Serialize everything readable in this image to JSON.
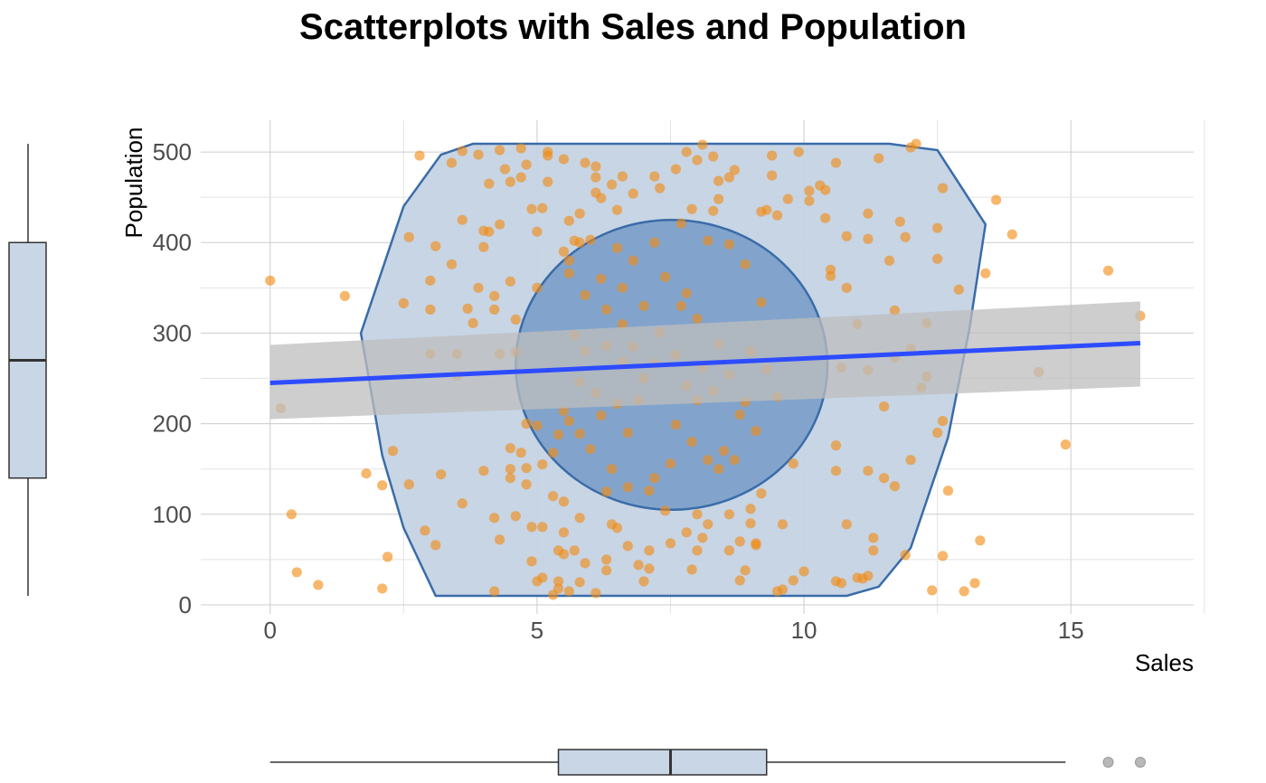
{
  "chart_data": {
    "type": "scatter",
    "title": "Scatterplots with Sales and Population",
    "xlabel": "Sales",
    "ylabel": "Population",
    "xlim": [
      -1.3,
      17.3
    ],
    "ylim": [
      -10,
      535
    ],
    "x_ticks": [
      0,
      5,
      10,
      15
    ],
    "y_ticks": [
      0,
      100,
      200,
      300,
      400,
      500
    ],
    "grid": true,
    "colors": {
      "points": "#f28a12",
      "regression_line": "#2d4cff",
      "confidence_band": "#bdbdbd",
      "hull_outer_fill": "#c4d3e4",
      "hull_inner_fill": "#7a9fc9",
      "hull_stroke": "#3a6ca8",
      "boxplot_fill": "#c8d6e6",
      "grid": "#cccccc",
      "outlier": "#b0b0b0"
    },
    "regression": {
      "x": [
        0,
        16.3
      ],
      "y": [
        245,
        289
      ],
      "ci_lower": [
        205,
        241
      ],
      "ci_upper": [
        287,
        335
      ]
    },
    "hull_outer": [
      [
        3.1,
        10
      ],
      [
        10.8,
        10
      ],
      [
        11.4,
        20
      ],
      [
        12.0,
        63
      ],
      [
        12.7,
        185
      ],
      [
        13.1,
        305
      ],
      [
        13.4,
        420
      ],
      [
        12.5,
        502
      ],
      [
        11.6,
        509
      ],
      [
        3.8,
        509
      ],
      [
        3.2,
        497
      ],
      [
        2.5,
        440
      ],
      [
        1.7,
        300
      ],
      [
        2.1,
        165
      ],
      [
        2.5,
        85
      ]
    ],
    "ellipse_inner": {
      "cx": 7.52,
      "cy": 265,
      "rx": 2.92,
      "ry": 160
    },
    "x_boxplot": {
      "min": 0,
      "q1": 5.4,
      "median": 7.5,
      "q3": 9.3,
      "max": 14.9,
      "outliers": [
        15.7,
        16.3
      ]
    },
    "y_boxplot": {
      "min": 10,
      "q1": 140,
      "median": 270,
      "q3": 400,
      "max": 509
    },
    "series": [
      {
        "points": [
          [
            0.0,
            358
          ],
          [
            0.2,
            217
          ],
          [
            0.4,
            100
          ],
          [
            0.5,
            36
          ],
          [
            0.9,
            22
          ],
          [
            1.4,
            341
          ],
          [
            1.8,
            145
          ],
          [
            2.1,
            18
          ],
          [
            2.1,
            132
          ],
          [
            2.2,
            53
          ],
          [
            2.3,
            170
          ],
          [
            2.6,
            406
          ],
          [
            2.6,
            133
          ],
          [
            2.5,
            333
          ],
          [
            2.8,
            496
          ],
          [
            2.9,
            82
          ],
          [
            3.0,
            358
          ],
          [
            3.0,
            326
          ],
          [
            3.0,
            277
          ],
          [
            3.1,
            66
          ],
          [
            3.1,
            396
          ],
          [
            3.2,
            144
          ],
          [
            3.4,
            376
          ],
          [
            3.4,
            488
          ],
          [
            3.5,
            277
          ],
          [
            3.5,
            253
          ],
          [
            3.6,
            112
          ],
          [
            3.6,
            425
          ],
          [
            3.6,
            501
          ],
          [
            3.7,
            327
          ],
          [
            3.8,
            311
          ],
          [
            3.9,
            497
          ],
          [
            3.9,
            350
          ],
          [
            4.0,
            395
          ],
          [
            4.0,
            413
          ],
          [
            4.0,
            148
          ],
          [
            4.1,
            465
          ],
          [
            4.1,
            412
          ],
          [
            4.2,
            96
          ],
          [
            4.2,
            341
          ],
          [
            4.2,
            326
          ],
          [
            4.2,
            15
          ],
          [
            4.3,
            72
          ],
          [
            4.3,
            277
          ],
          [
            4.3,
            420
          ],
          [
            4.3,
            502
          ],
          [
            4.4,
            481
          ],
          [
            4.5,
            467
          ],
          [
            4.5,
            357
          ],
          [
            4.5,
            173
          ],
          [
            4.5,
            150
          ],
          [
            4.5,
            140
          ],
          [
            4.6,
            279
          ],
          [
            4.6,
            98
          ],
          [
            4.6,
            315
          ],
          [
            4.7,
            168
          ],
          [
            4.7,
            504
          ],
          [
            4.7,
            472
          ],
          [
            4.8,
            200
          ],
          [
            4.8,
            133
          ],
          [
            4.8,
            151
          ],
          [
            4.8,
            486
          ],
          [
            4.9,
            86
          ],
          [
            4.9,
            48
          ],
          [
            4.9,
            437
          ],
          [
            5.0,
            26
          ],
          [
            5.0,
            412
          ],
          [
            5.0,
            198
          ],
          [
            5.0,
            350
          ],
          [
            5.1,
            30
          ],
          [
            5.1,
            155
          ],
          [
            5.1,
            438
          ],
          [
            5.1,
            86
          ],
          [
            5.2,
            500
          ],
          [
            5.2,
            496
          ],
          [
            5.2,
            467
          ],
          [
            5.3,
            11
          ],
          [
            5.3,
            120
          ],
          [
            5.4,
            60
          ],
          [
            5.4,
            18
          ],
          [
            5.4,
            26
          ],
          [
            5.5,
            80
          ],
          [
            5.5,
            114
          ],
          [
            5.5,
            56
          ],
          [
            5.5,
            492
          ],
          [
            5.5,
            390
          ],
          [
            5.6,
            424
          ],
          [
            5.6,
            366
          ],
          [
            5.6,
            380
          ],
          [
            5.6,
            203
          ],
          [
            5.6,
            15
          ],
          [
            5.7,
            60
          ],
          [
            5.7,
            402
          ],
          [
            5.8,
            25
          ],
          [
            5.8,
            96
          ],
          [
            5.8,
            432
          ],
          [
            5.8,
            400
          ],
          [
            5.9,
            46
          ],
          [
            5.9,
            488
          ],
          [
            6.0,
            403
          ],
          [
            6.1,
            484
          ],
          [
            6.1,
            472
          ],
          [
            6.1,
            455
          ],
          [
            6.1,
            13
          ],
          [
            6.2,
            449
          ],
          [
            6.3,
            50
          ],
          [
            6.3,
            38
          ],
          [
            6.3,
            125
          ],
          [
            6.4,
            89
          ],
          [
            6.4,
            464
          ],
          [
            6.5,
            85
          ],
          [
            6.5,
            436
          ],
          [
            6.6,
            473
          ],
          [
            6.7,
            65
          ],
          [
            6.8,
            454
          ],
          [
            6.9,
            44
          ],
          [
            7.0,
            26
          ],
          [
            7.1,
            40
          ],
          [
            7.1,
            60
          ],
          [
            7.2,
            473
          ],
          [
            7.3,
            460
          ],
          [
            7.5,
            68
          ],
          [
            7.6,
            481
          ],
          [
            7.8,
            500
          ],
          [
            7.8,
            80
          ],
          [
            7.9,
            39
          ],
          [
            7.9,
            437
          ],
          [
            8.0,
            100
          ],
          [
            8.0,
            60
          ],
          [
            8.0,
            491
          ],
          [
            8.1,
            508
          ],
          [
            8.1,
            74
          ],
          [
            8.2,
            89
          ],
          [
            8.3,
            495
          ],
          [
            8.3,
            435
          ],
          [
            8.4,
            448
          ],
          [
            8.4,
            468
          ],
          [
            8.6,
            100
          ],
          [
            8.6,
            60
          ],
          [
            8.6,
            472
          ],
          [
            8.7,
            480
          ],
          [
            8.8,
            70
          ],
          [
            8.8,
            27
          ],
          [
            8.9,
            38
          ],
          [
            9.0,
            106
          ],
          [
            9.0,
            90
          ],
          [
            9.1,
            68
          ],
          [
            9.1,
            66
          ],
          [
            9.2,
            123
          ],
          [
            9.2,
            434
          ],
          [
            9.3,
            436
          ],
          [
            9.4,
            474
          ],
          [
            9.4,
            496
          ],
          [
            9.5,
            15
          ],
          [
            9.5,
            430
          ],
          [
            9.6,
            17
          ],
          [
            9.6,
            89
          ],
          [
            9.7,
            448
          ],
          [
            9.8,
            27
          ],
          [
            9.8,
            156
          ],
          [
            9.9,
            500
          ],
          [
            10.0,
            37
          ],
          [
            10.1,
            457
          ],
          [
            10.1,
            446
          ],
          [
            10.3,
            463
          ],
          [
            10.4,
            458
          ],
          [
            10.4,
            427
          ],
          [
            10.5,
            370
          ],
          [
            10.5,
            363
          ],
          [
            10.6,
            176
          ],
          [
            10.6,
            148
          ],
          [
            10.6,
            488
          ],
          [
            10.6,
            26
          ],
          [
            10.7,
            262
          ],
          [
            10.7,
            24
          ],
          [
            10.8,
            350
          ],
          [
            10.8,
            407
          ],
          [
            10.8,
            89
          ],
          [
            11.0,
            30
          ],
          [
            11.0,
            310
          ],
          [
            11.1,
            29
          ],
          [
            11.2,
            432
          ],
          [
            11.2,
            32
          ],
          [
            11.2,
            404
          ],
          [
            11.2,
            148
          ],
          [
            11.2,
            259
          ],
          [
            11.3,
            74
          ],
          [
            11.3,
            60
          ],
          [
            11.4,
            493
          ],
          [
            11.5,
            140
          ],
          [
            11.5,
            219
          ],
          [
            11.6,
            380
          ],
          [
            11.7,
            273
          ],
          [
            11.7,
            325
          ],
          [
            11.7,
            131
          ],
          [
            11.8,
            423
          ],
          [
            11.9,
            55
          ],
          [
            11.9,
            406
          ],
          [
            12.0,
            283
          ],
          [
            12.0,
            160
          ],
          [
            12.0,
            505
          ],
          [
            12.1,
            509
          ],
          [
            12.2,
            240
          ],
          [
            12.3,
            252
          ],
          [
            12.3,
            311
          ],
          [
            12.4,
            16
          ],
          [
            12.5,
            416
          ],
          [
            12.5,
            382
          ],
          [
            12.5,
            190
          ],
          [
            12.6,
            203
          ],
          [
            12.6,
            460
          ],
          [
            12.6,
            54
          ],
          [
            12.7,
            126
          ],
          [
            12.9,
            348
          ],
          [
            13.0,
            15
          ],
          [
            13.2,
            24
          ],
          [
            13.3,
            71
          ],
          [
            13.4,
            366
          ],
          [
            13.6,
            447
          ],
          [
            13.9,
            409
          ],
          [
            14.4,
            257
          ],
          [
            14.9,
            177
          ],
          [
            15.7,
            369
          ],
          [
            16.3,
            319
          ],
          [
            6.3,
            326
          ],
          [
            6.6,
            310
          ],
          [
            6.8,
            285
          ],
          [
            7.0,
            250
          ],
          [
            6.5,
            222
          ],
          [
            6.2,
            209
          ],
          [
            6.7,
            190
          ],
          [
            7.2,
            140
          ],
          [
            7.4,
            104
          ],
          [
            7.6,
            199
          ],
          [
            7.8,
            242
          ],
          [
            8.0,
            226
          ],
          [
            8.2,
            160
          ],
          [
            8.5,
            170
          ],
          [
            8.8,
            210
          ],
          [
            9.0,
            280
          ],
          [
            9.2,
            334
          ],
          [
            8.9,
            376
          ],
          [
            8.6,
            398
          ],
          [
            8.2,
            402
          ],
          [
            7.7,
            421
          ],
          [
            7.2,
            400
          ],
          [
            6.8,
            380
          ],
          [
            6.5,
            394
          ],
          [
            6.2,
            360
          ],
          [
            5.9,
            342
          ],
          [
            5.7,
            298
          ],
          [
            5.9,
            280
          ],
          [
            6.1,
            234
          ],
          [
            5.8,
            189
          ],
          [
            6.0,
            172
          ],
          [
            6.4,
            150
          ],
          [
            6.7,
            130
          ],
          [
            7.1,
            126
          ],
          [
            7.5,
            156
          ],
          [
            7.9,
            180
          ],
          [
            8.3,
            236
          ],
          [
            8.6,
            254
          ],
          [
            8.9,
            224
          ],
          [
            9.3,
            260
          ],
          [
            9.5,
            230
          ],
          [
            9.1,
            192
          ],
          [
            8.7,
            160
          ],
          [
            8.4,
            150
          ],
          [
            7.7,
            330
          ],
          [
            7.3,
            301
          ],
          [
            7.0,
            330
          ],
          [
            6.6,
            350
          ],
          [
            7.4,
            362
          ],
          [
            7.8,
            344
          ],
          [
            8.0,
            316
          ],
          [
            8.4,
            288
          ],
          [
            8.1,
            262
          ],
          [
            7.6,
            276
          ],
          [
            7.2,
            266
          ],
          [
            6.9,
            226
          ],
          [
            6.6,
            268
          ],
          [
            6.3,
            286
          ],
          [
            5.8,
            246
          ],
          [
            5.5,
            214
          ],
          [
            5.4,
            188
          ],
          [
            5.3,
            168
          ]
        ]
      }
    ]
  }
}
